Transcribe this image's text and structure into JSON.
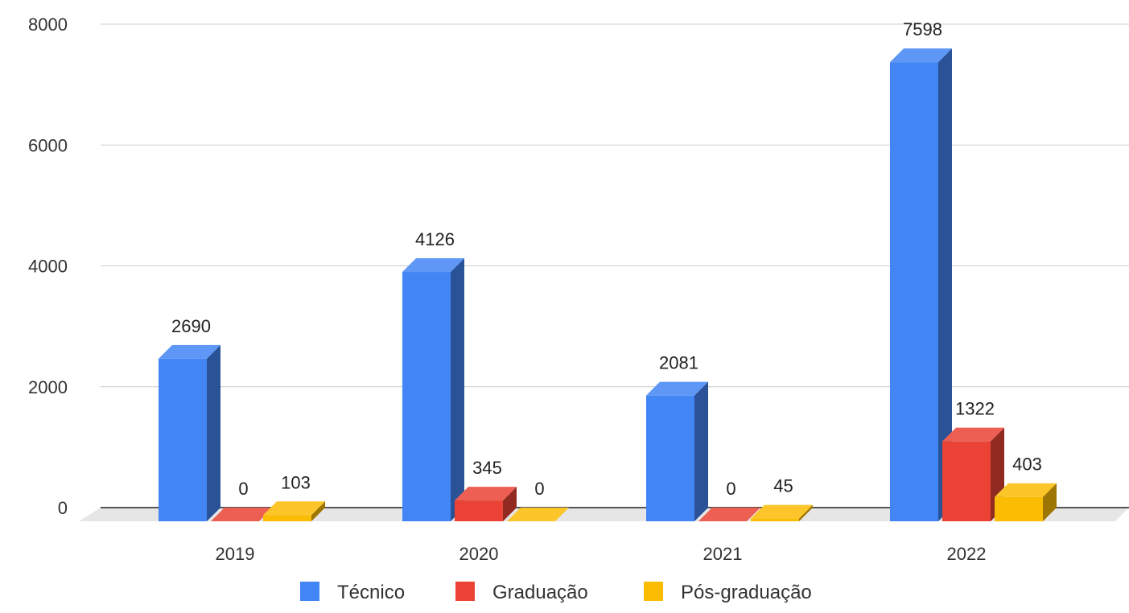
{
  "chart_data": {
    "type": "bar",
    "categories": [
      "2019",
      "2020",
      "2021",
      "2022"
    ],
    "series": [
      {
        "name": "Técnico",
        "values": [
          2690,
          4126,
          2081,
          7598
        ],
        "color": "#4285F4"
      },
      {
        "name": "Graduação",
        "values": [
          0,
          345,
          0,
          1322
        ],
        "color": "#EA4335"
      },
      {
        "name": "Pós-graduação",
        "values": [
          103,
          0,
          45,
          403
        ],
        "color": "#FBBC04"
      }
    ],
    "y_ticks": [
      0,
      2000,
      4000,
      6000,
      8000
    ],
    "ylim": [
      0,
      8000
    ],
    "grid": true,
    "legend_position": "bottom",
    "style": "3d"
  }
}
